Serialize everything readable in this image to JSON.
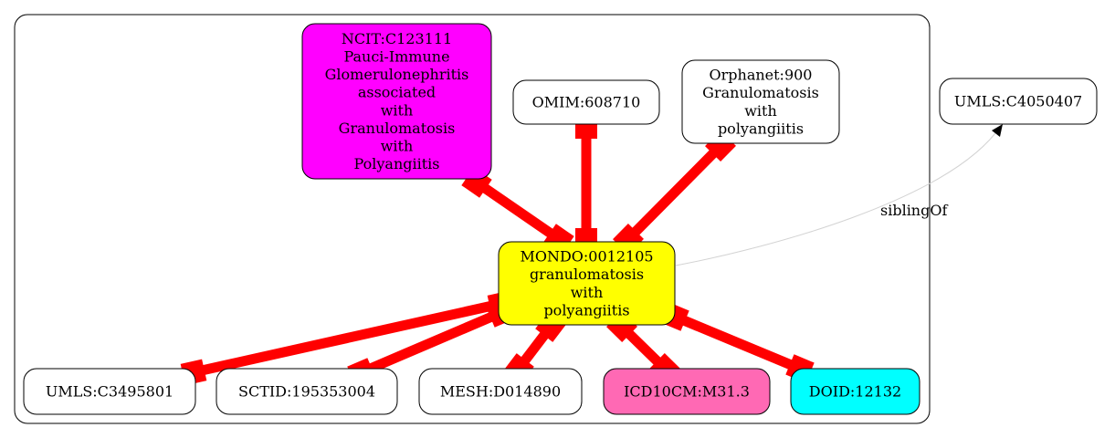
{
  "diagram": {
    "nodes": {
      "ncit": {
        "lines": [
          "NCIT:C123111",
          "Pauci-Immune",
          "Glomerulonephritis",
          "associated",
          "with",
          "Granulomatosis",
          "with",
          "Polyangiitis"
        ],
        "fill": "#ff00ff"
      },
      "omim": {
        "lines": [
          "OMIM:608710"
        ],
        "fill": "#ffffff"
      },
      "orphanet": {
        "lines": [
          "Orphanet:900",
          "Granulomatosis",
          "with",
          "polyangiitis"
        ],
        "fill": "#ffffff"
      },
      "umls_c4050407": {
        "lines": [
          "UMLS:C4050407"
        ],
        "fill": "#ffffff"
      },
      "mondo": {
        "lines": [
          "MONDO:0012105",
          "granulomatosis",
          "with",
          "polyangiitis"
        ],
        "fill": "#ffff00"
      },
      "umls_c3495801": {
        "lines": [
          "UMLS:C3495801"
        ],
        "fill": "#ffffff"
      },
      "sctid": {
        "lines": [
          "SCTID:195353004"
        ],
        "fill": "#ffffff"
      },
      "mesh": {
        "lines": [
          "MESH:D014890"
        ],
        "fill": "#ffffff"
      },
      "icd10cm": {
        "lines": [
          "ICD10CM:M31.3"
        ],
        "fill": "#ff69b4"
      },
      "doid": {
        "lines": [
          "DOID:12132"
        ],
        "fill": "#00ffff"
      }
    },
    "edges": [
      {
        "from": "ncit",
        "to": "mondo",
        "style": "equivalent"
      },
      {
        "from": "omim",
        "to": "mondo",
        "style": "equivalent"
      },
      {
        "from": "orphanet",
        "to": "mondo",
        "style": "equivalent"
      },
      {
        "from": "mondo",
        "to": "umls_c3495801",
        "style": "equivalent"
      },
      {
        "from": "mondo",
        "to": "sctid",
        "style": "equivalent"
      },
      {
        "from": "mondo",
        "to": "mesh",
        "style": "equivalent"
      },
      {
        "from": "mondo",
        "to": "icd10cm",
        "style": "equivalent"
      },
      {
        "from": "mondo",
        "to": "doid",
        "style": "equivalent"
      },
      {
        "from": "mondo",
        "to": "umls_c4050407",
        "style": "sibling",
        "label": "siblingOf"
      }
    ],
    "colors": {
      "equivalent_edge": "#ff0000",
      "sibling_edge": "#d3d3d3"
    }
  }
}
